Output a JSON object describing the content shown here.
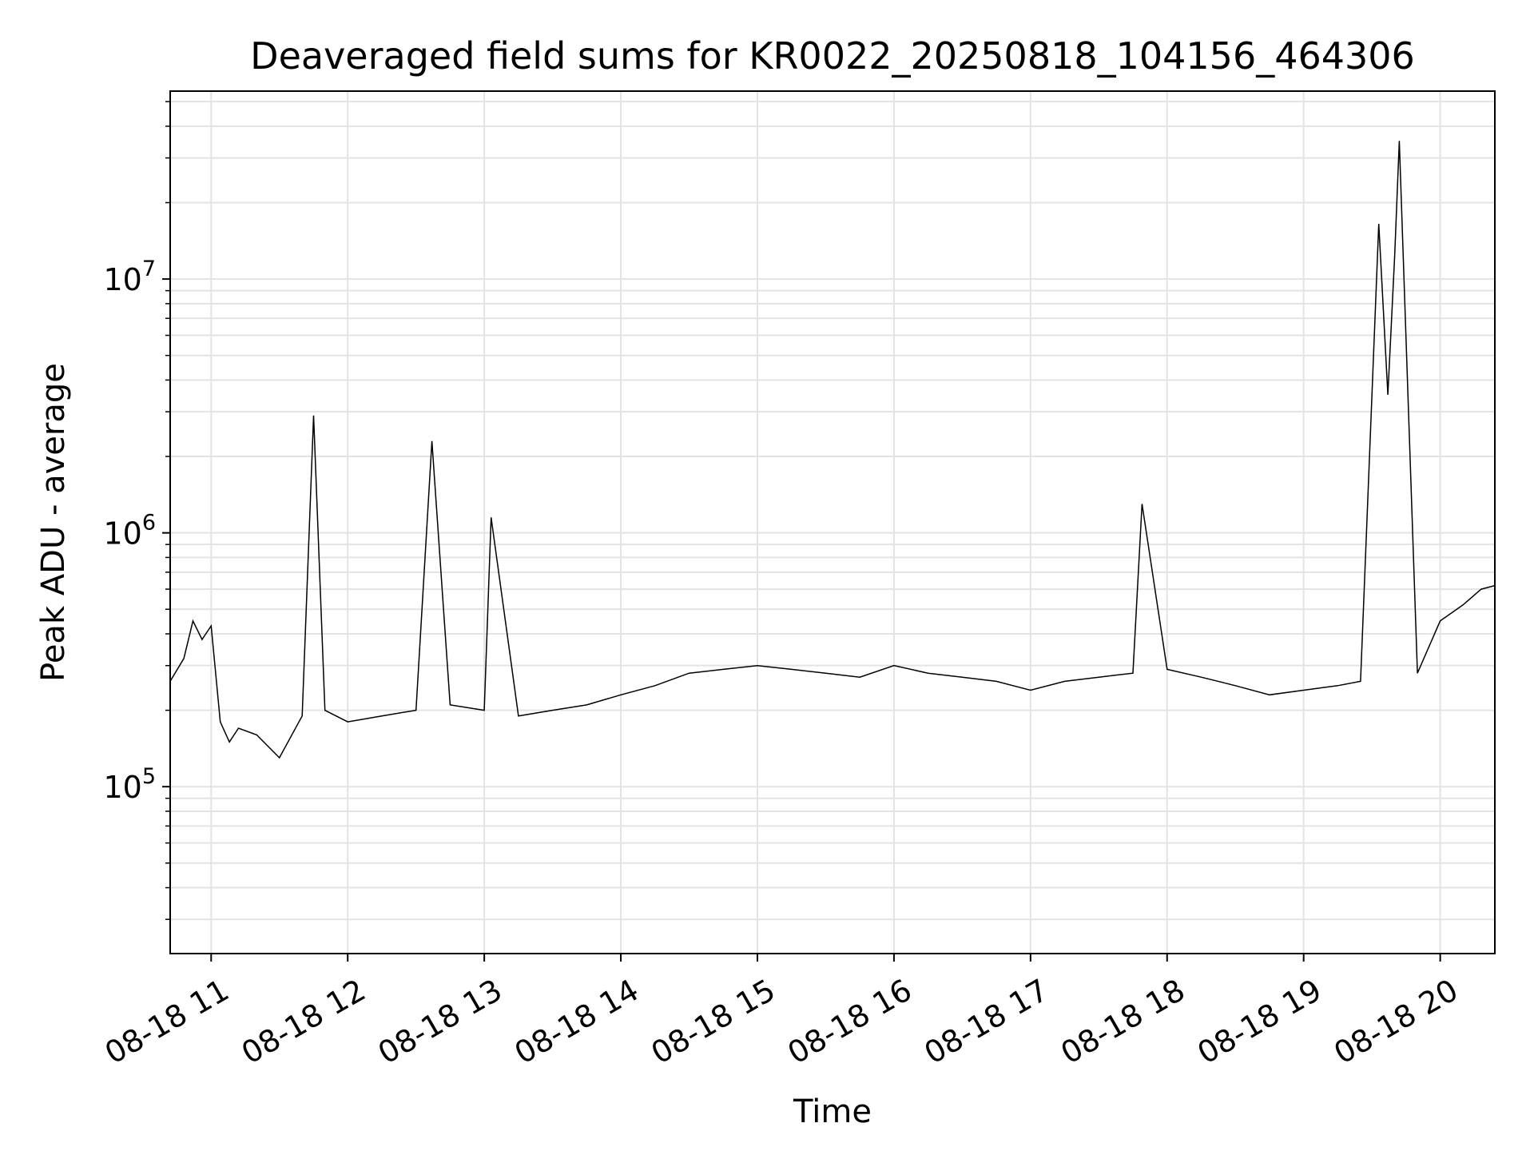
{
  "chart_data": {
    "type": "line",
    "title": "Deaveraged field sums for KR0022_20250818_104156_464306",
    "xlabel": "Time",
    "ylabel": "Peak ADU - average",
    "x_range": [
      "2025-08-18 10:42",
      "2025-08-18 20:24"
    ],
    "y_scale": "log",
    "ylim": [
      22000,
      55000000
    ],
    "x_ticks": [
      {
        "value": "2025-08-18 11:00",
        "label": "08-18 11"
      },
      {
        "value": "2025-08-18 12:00",
        "label": "08-18 12"
      },
      {
        "value": "2025-08-18 13:00",
        "label": "08-18 13"
      },
      {
        "value": "2025-08-18 14:00",
        "label": "08-18 14"
      },
      {
        "value": "2025-08-18 15:00",
        "label": "08-18 15"
      },
      {
        "value": "2025-08-18 16:00",
        "label": "08-18 16"
      },
      {
        "value": "2025-08-18 17:00",
        "label": "08-18 17"
      },
      {
        "value": "2025-08-18 18:00",
        "label": "08-18 18"
      },
      {
        "value": "2025-08-18 19:00",
        "label": "08-18 19"
      },
      {
        "value": "2025-08-18 20:00",
        "label": "08-18 20"
      }
    ],
    "y_ticks": [
      {
        "value": 100000,
        "base": "10",
        "exp": "5"
      },
      {
        "value": 1000000,
        "base": "10",
        "exp": "6"
      },
      {
        "value": 10000000,
        "base": "10",
        "exp": "7"
      }
    ],
    "grid": true,
    "line_color": "#000000",
    "series": [
      {
        "x": [
          "2025-08-18 10:42",
          "2025-08-18 10:48",
          "2025-08-18 10:52",
          "2025-08-18 10:56",
          "2025-08-18 11:00",
          "2025-08-18 11:04",
          "2025-08-18 11:08",
          "2025-08-18 11:12",
          "2025-08-18 11:20",
          "2025-08-18 11:30",
          "2025-08-18 11:40",
          "2025-08-18 11:45",
          "2025-08-18 11:50",
          "2025-08-18 12:00",
          "2025-08-18 12:15",
          "2025-08-18 12:30",
          "2025-08-18 12:37",
          "2025-08-18 12:45",
          "2025-08-18 13:00",
          "2025-08-18 13:03",
          "2025-08-18 13:15",
          "2025-08-18 13:30",
          "2025-08-18 13:45",
          "2025-08-18 14:00",
          "2025-08-18 14:15",
          "2025-08-18 14:30",
          "2025-08-18 14:45",
          "2025-08-18 15:00",
          "2025-08-18 15:15",
          "2025-08-18 15:30",
          "2025-08-18 15:45",
          "2025-08-18 16:00",
          "2025-08-18 16:15",
          "2025-08-18 16:30",
          "2025-08-18 16:45",
          "2025-08-18 17:00",
          "2025-08-18 17:15",
          "2025-08-18 17:30",
          "2025-08-18 17:45",
          "2025-08-18 17:49",
          "2025-08-18 18:00",
          "2025-08-18 18:15",
          "2025-08-18 18:30",
          "2025-08-18 18:45",
          "2025-08-18 19:00",
          "2025-08-18 19:15",
          "2025-08-18 19:25",
          "2025-08-18 19:33",
          "2025-08-18 19:37",
          "2025-08-18 19:40",
          "2025-08-18 19:42",
          "2025-08-18 19:50",
          "2025-08-18 20:00",
          "2025-08-18 20:10",
          "2025-08-18 20:18",
          "2025-08-18 20:24"
        ],
        "y": [
          260000,
          320000,
          450000,
          380000,
          430000,
          180000,
          150000,
          170000,
          160000,
          130000,
          190000,
          2900000,
          200000,
          180000,
          190000,
          200000,
          2300000,
          210000,
          200000,
          1150000,
          190000,
          200000,
          210000,
          230000,
          250000,
          280000,
          290000,
          300000,
          290000,
          280000,
          270000,
          300000,
          280000,
          270000,
          260000,
          240000,
          260000,
          270000,
          280000,
          1300000,
          290000,
          270000,
          250000,
          230000,
          240000,
          250000,
          260000,
          16500000,
          3500000,
          12500000,
          35000000,
          280000,
          450000,
          520000,
          600000,
          620000
        ]
      }
    ]
  }
}
